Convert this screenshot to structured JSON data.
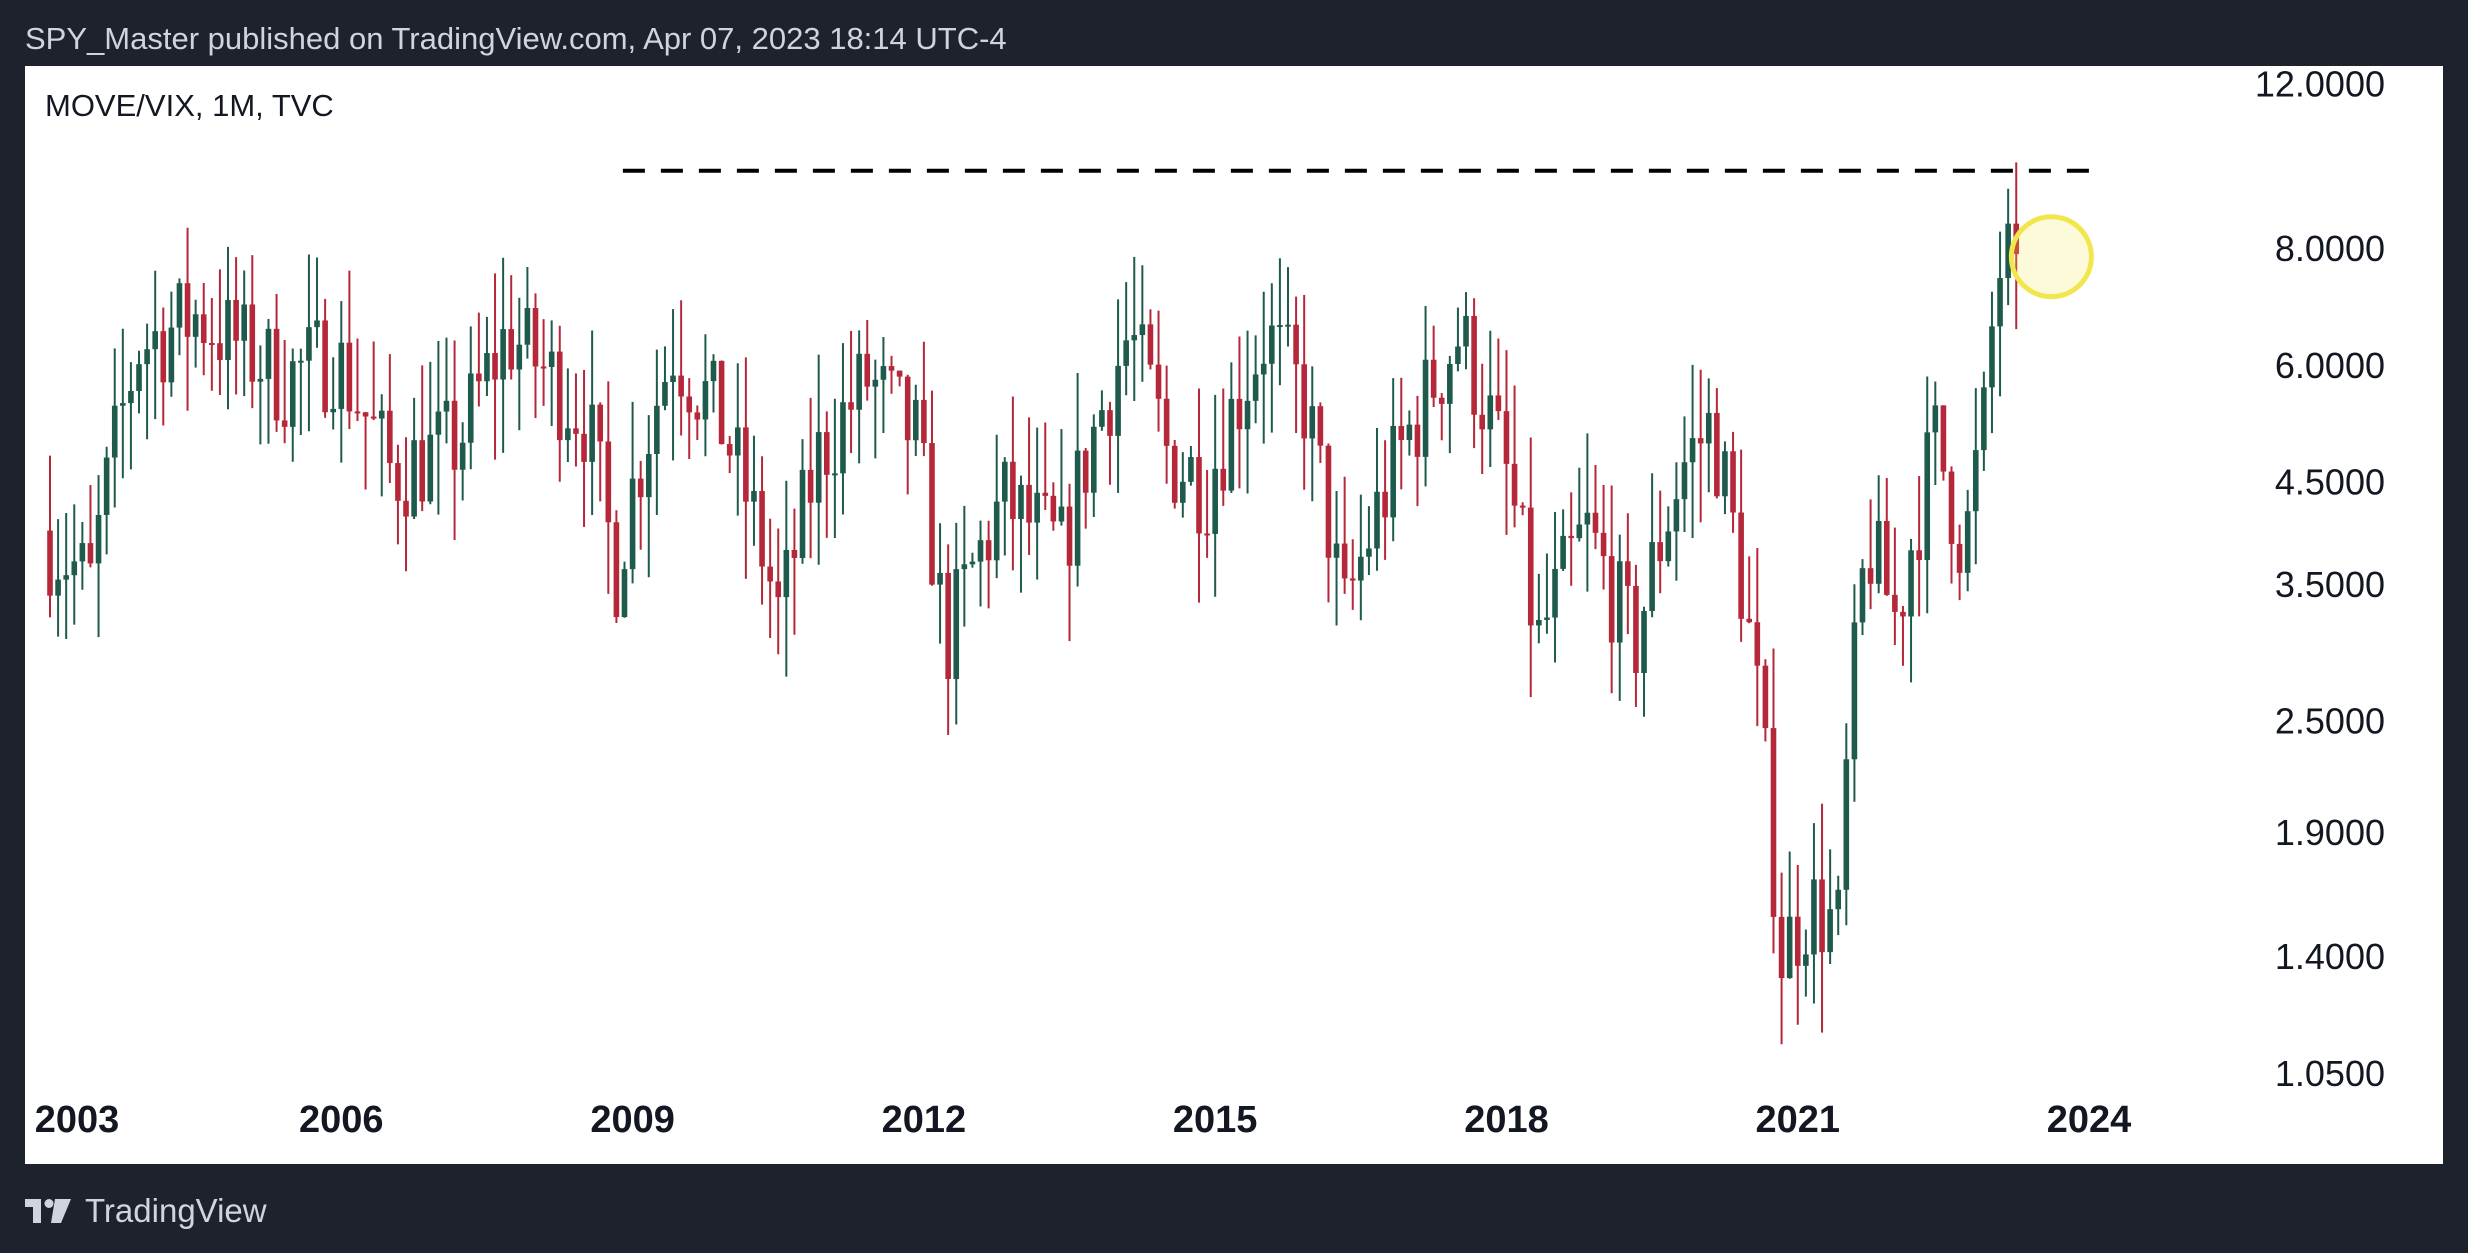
{
  "header": {
    "published": "SPY_Master published on TradingView.com, Apr 07, 2023 18:14 UTC-4"
  },
  "footer": {
    "brand": "TradingView"
  },
  "colors": {
    "up": "#1e5b4c",
    "down": "#b5283a",
    "marker": "#f2e64d",
    "background": "#ffffff",
    "frame": "#1e222d"
  },
  "chart_data": {
    "type": "candlestick",
    "symbol": "MOVE/VIX, 1M, TVC",
    "scale": "log",
    "ylim": [
      0.97,
      12.4
    ],
    "y_ticks": [
      "12.0000",
      "8.0000",
      "6.0000",
      "4.5000",
      "3.5000",
      "2.5000",
      "1.9000",
      "1.4000",
      "1.0500"
    ],
    "x_ticks": [
      "2003",
      "2006",
      "2009",
      "2012",
      "2015",
      "2018",
      "2021",
      "2024"
    ],
    "x_range": [
      2003.0,
      2025.4
    ],
    "resistance_line": {
      "value": 9.7,
      "from": 2008.9,
      "to": 2024.0,
      "style": "dashed"
    },
    "highlight": {
      "x": 2023.2,
      "value": 7.85,
      "shape": "circle"
    },
    "candles_note": "monthly OHLC series of the MOVE/VIX ratio, Jan 2003 - Apr 2023"
  }
}
